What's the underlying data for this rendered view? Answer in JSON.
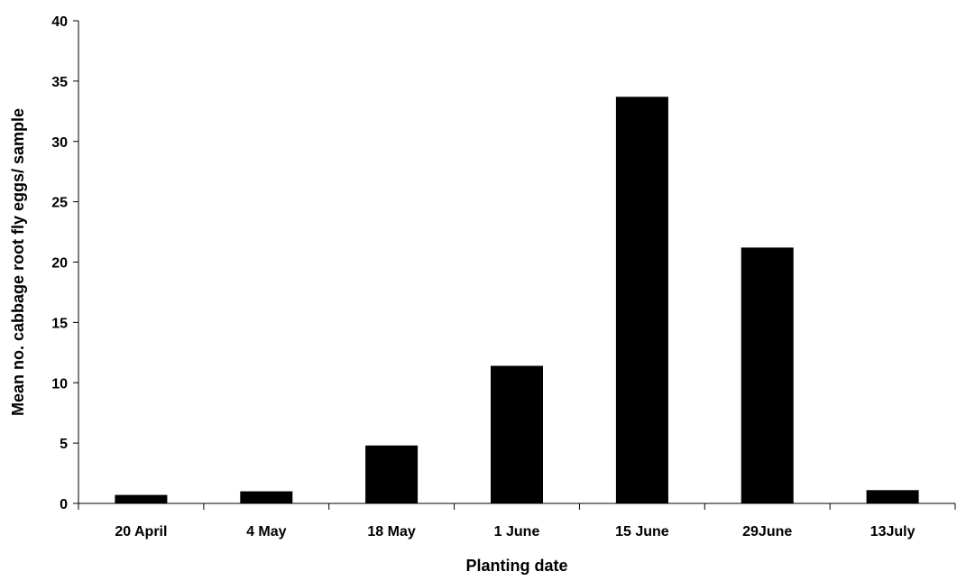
{
  "chart_data": {
    "type": "bar",
    "title": "",
    "xlabel": "Planting date",
    "ylabel": "Mean no. cabbage root fly eggs/ sample",
    "categories": [
      "20 April",
      "4 May",
      "18 May",
      "1 June",
      "15 June",
      "29June",
      "13July"
    ],
    "values": [
      0.7,
      1.0,
      4.8,
      11.4,
      33.7,
      21.2,
      1.1
    ],
    "ylim": [
      0,
      40
    ],
    "yticks": [
      0,
      5,
      10,
      15,
      20,
      25,
      30,
      35,
      40
    ],
    "ytick_labels": [
      "0",
      "5",
      "10",
      "15",
      "20",
      "25",
      "30",
      "35",
      "40"
    ],
    "grid": false,
    "legend": "none",
    "bar_color": "#000000"
  }
}
